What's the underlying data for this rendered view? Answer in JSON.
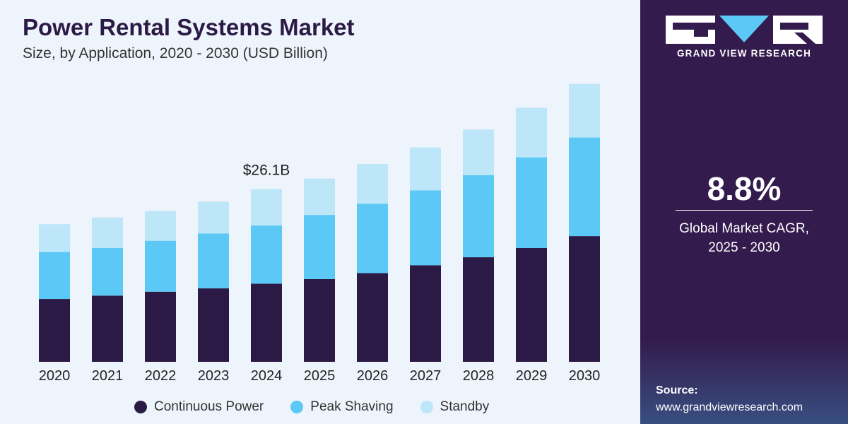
{
  "header": {
    "title": "Power Rental Systems Market",
    "subtitle": "Size, by Application, 2020 - 2030 (USD Billion)"
  },
  "chart_data": {
    "type": "bar",
    "stacked": true,
    "title": "Power Rental Systems Market",
    "subtitle": "Size, by Application, 2020 - 2030 (USD Billion)",
    "categories": [
      "2020",
      "2021",
      "2022",
      "2023",
      "2024",
      "2025",
      "2026",
      "2027",
      "2028",
      "2029",
      "2030"
    ],
    "series": [
      {
        "name": "Continuous Power",
        "color": "#2c1a46",
        "values": [
          9.5,
          10.0,
          10.6,
          11.1,
          11.8,
          12.5,
          13.4,
          14.6,
          15.8,
          17.2,
          19.0
        ]
      },
      {
        "name": "Peak Shaving",
        "color": "#5bc8f5",
        "values": [
          7.1,
          7.2,
          7.7,
          8.3,
          8.8,
          9.7,
          10.5,
          11.3,
          12.4,
          13.7,
          14.9
        ]
      },
      {
        "name": "Standby",
        "color": "#bde7f8",
        "values": [
          4.2,
          4.6,
          4.5,
          4.8,
          5.5,
          5.5,
          6.0,
          6.5,
          6.9,
          7.5,
          8.1
        ]
      }
    ],
    "annotations": [
      {
        "category": "2024",
        "text": "$26.1B"
      }
    ],
    "ylim": [
      0,
      44
    ],
    "grid": false,
    "legend_position": "bottom"
  },
  "legend": [
    {
      "label": "Continuous Power",
      "color": "#2c1a46"
    },
    {
      "label": "Peak Shaving",
      "color": "#5bc8f5"
    },
    {
      "label": "Standby",
      "color": "#bde7f8"
    }
  ],
  "sidebar": {
    "brand": "GRAND VIEW RESEARCH",
    "cagr_value": "8.8%",
    "cagr_label_line1": "Global Market CAGR,",
    "cagr_label_line2": "2025 - 2030",
    "source_title": "Source:",
    "source_url": "www.grandviewresearch.com"
  }
}
